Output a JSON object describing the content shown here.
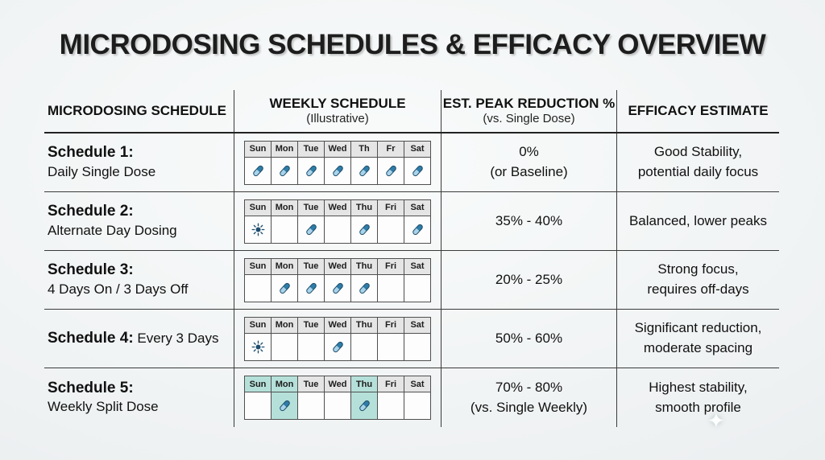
{
  "title": "MICRODOSING SCHEDULES & EFFICACY OVERVIEW",
  "colors": {
    "pill_dark": "#2f7ca8",
    "pill_light": "#a8d3ea",
    "pill_outline": "#1b4a66",
    "sun": "#1f4e6e",
    "highlight": "#b5e0d9"
  },
  "header": {
    "col1": "MICRODOSING SCHEDULE",
    "col2": "WEEKLY SCHEDULE",
    "col2_sub": "(Illustrative)",
    "col3": "EST. PEAK REDUCTION %",
    "col3_sub": "(vs. Single Dose)",
    "col4": "EFFICACY ESTIMATE"
  },
  "rows": [
    {
      "schedule_bold": "Schedule 1:",
      "schedule_text": "Daily Single Dose",
      "inline": false,
      "days": [
        {
          "d": "Sun",
          "icon": "pill"
        },
        {
          "d": "Mon",
          "icon": "pill"
        },
        {
          "d": "Tue",
          "icon": "pill"
        },
        {
          "d": "Wed",
          "icon": "pill"
        },
        {
          "d": "Th",
          "icon": "pill"
        },
        {
          "d": "Fr",
          "icon": "pill"
        },
        {
          "d": "Sat",
          "icon": "pill"
        }
      ],
      "reduction": "0%\n(or Baseline)",
      "efficacy": "Good Stability,\npotential daily focus"
    },
    {
      "schedule_bold": "Schedule 2:",
      "schedule_text": "Alternate Day Dosing",
      "inline": false,
      "days": [
        {
          "d": "Sun",
          "icon": "sun"
        },
        {
          "d": "Mon",
          "icon": "none"
        },
        {
          "d": "Tue",
          "icon": "pill"
        },
        {
          "d": "Wed",
          "icon": "none"
        },
        {
          "d": "Thu",
          "icon": "pill"
        },
        {
          "d": "Fri",
          "icon": "none"
        },
        {
          "d": "Sat",
          "icon": "pill"
        }
      ],
      "reduction": "35% - 40%",
      "efficacy": "Balanced, lower peaks"
    },
    {
      "schedule_bold": "Schedule 3:",
      "schedule_text": "4 Days On / 3 Days Off",
      "inline": false,
      "days": [
        {
          "d": "Sun",
          "icon": "none"
        },
        {
          "d": "Mon",
          "icon": "pill"
        },
        {
          "d": "Tue",
          "icon": "pill"
        },
        {
          "d": "Wed",
          "icon": "pill"
        },
        {
          "d": "Thu",
          "icon": "pill"
        },
        {
          "d": "Fri",
          "icon": "none"
        },
        {
          "d": "Sat",
          "icon": "none"
        }
      ],
      "reduction": "20% - 25%",
      "efficacy": "Strong focus,\nrequires off-days"
    },
    {
      "schedule_bold": "Schedule 4:",
      "schedule_text": " Every 3 Days",
      "inline": true,
      "days": [
        {
          "d": "Sun",
          "icon": "sun"
        },
        {
          "d": "Mon",
          "icon": "none"
        },
        {
          "d": "Tue",
          "icon": "none"
        },
        {
          "d": "Wed",
          "icon": "pill"
        },
        {
          "d": "Thu",
          "icon": "none"
        },
        {
          "d": "Fri",
          "icon": "none"
        },
        {
          "d": "Sat",
          "icon": "none"
        }
      ],
      "reduction": "50% - 60%",
      "efficacy": "Significant reduction,\nmoderate spacing"
    },
    {
      "schedule_bold": "Schedule 5:",
      "schedule_text": "Weekly Split Dose",
      "inline": false,
      "days": [
        {
          "d": "Sun",
          "icon": "none",
          "hh": true
        },
        {
          "d": "Mon",
          "icon": "pill",
          "hh": true,
          "bh": true
        },
        {
          "d": "Tue",
          "icon": "none"
        },
        {
          "d": "Wed",
          "icon": "none"
        },
        {
          "d": "Thu",
          "icon": "pill",
          "hh": true,
          "bh": true
        },
        {
          "d": "Fri",
          "icon": "none"
        },
        {
          "d": "Sat",
          "icon": "none"
        }
      ],
      "reduction": "70% - 80%\n(vs. Single Weekly)",
      "efficacy": "Highest stability,\nsmooth profile"
    }
  ],
  "sparkle": "✦",
  "chart_data": {
    "type": "table",
    "title": "MICRODOSING SCHEDULES & EFFICACY OVERVIEW",
    "columns": [
      "MICRODOSING SCHEDULE",
      "WEEKLY SCHEDULE (Illustrative)",
      "EST. PEAK REDUCTION % (vs. Single Dose)",
      "EFFICACY ESTIMATE"
    ],
    "rows": [
      [
        "Schedule 1: Daily Single Dose",
        "Doses: Sun, Mon, Tue, Wed, Th, Fr, Sat",
        "0% (or Baseline)",
        "Good Stability, potential daily focus"
      ],
      [
        "Schedule 2: Alternate Day Dosing",
        "Sun marker on Sun; Doses: Tue, Thu, Sat",
        "35% - 40%",
        "Balanced, lower peaks"
      ],
      [
        "Schedule 3: 4 Days On / 3 Days Off",
        "Doses: Mon, Tue, Wed, Thu",
        "20% - 25%",
        "Strong focus, requires off-days"
      ],
      [
        "Schedule 4: Every 3 Days",
        "Sun marker on Sun; Dose: Wed",
        "50% - 60%",
        "Significant reduction, moderate spacing"
      ],
      [
        "Schedule 5: Weekly Split Dose",
        "Doses: Mon, Thu (highlighted cells)",
        "70% - 80% (vs. Single Weekly)",
        "Highest stability, smooth profile"
      ]
    ]
  }
}
